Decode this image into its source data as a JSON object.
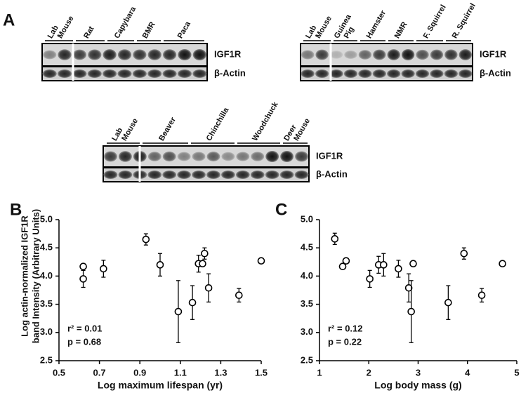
{
  "panel_a": {
    "label": "A",
    "blots": [
      {
        "groups": [
          [
            "Lab",
            "Mouse"
          ],
          [
            "Rat"
          ],
          [
            "Capybara"
          ],
          [
            "BMR"
          ],
          [
            "Paca"
          ]
        ],
        "rows": [
          "IGF1R",
          "β-Actin"
        ]
      },
      {
        "groups": [
          [
            "Lab",
            "Mouse"
          ],
          [
            "Guinea",
            "Pig"
          ],
          [
            "Hamster"
          ],
          [
            "NMR"
          ],
          [
            "F. Squirrel"
          ],
          [
            "R. Squirrel"
          ]
        ],
        "rows": [
          "IGF1R",
          "β-Actin"
        ]
      },
      {
        "groups": [
          [
            "Lab",
            "Mouse"
          ],
          [
            "Beaver"
          ],
          [
            "Chinchilla"
          ],
          [
            "Woodchuck"
          ],
          [
            "Deer",
            "Mouse"
          ]
        ],
        "rows": [
          "IGF1R",
          "β-Actin"
        ]
      }
    ]
  },
  "chart_data": [
    {
      "type": "scatter",
      "panel": "B",
      "xlabel": "Log maximum lifespan (yr)",
      "ylabel": [
        "Log actin-normalized IGF1R",
        "band Intensity (Arbitrary Units)"
      ],
      "x": [
        0.62,
        0.62,
        0.72,
        0.93,
        1.0,
        1.09,
        1.16,
        1.19,
        1.21,
        1.22,
        1.24,
        1.39,
        1.5
      ],
      "values": [
        4.17,
        3.95,
        4.13,
        4.65,
        4.2,
        3.37,
        3.53,
        4.22,
        4.22,
        4.4,
        3.79,
        3.66,
        4.27
      ],
      "errors": [
        null,
        0.15,
        0.15,
        0.1,
        0.2,
        0.55,
        0.3,
        0.15,
        null,
        0.1,
        0.25,
        0.12,
        null
      ],
      "xlim": [
        0.5,
        1.5
      ],
      "xticks": [
        0.5,
        0.7,
        0.9,
        1.1,
        1.3,
        1.5
      ],
      "ylim": [
        2.5,
        5
      ],
      "yticks": [
        2.5,
        {
          "value": 3,
          "label": "3.0"
        },
        3.5,
        {
          "value": 4,
          "label": "4.0"
        },
        4.5,
        {
          "value": 5,
          "label": "5.0"
        }
      ],
      "annotations": [
        "r² = 0.01",
        "p = 0.68"
      ]
    },
    {
      "type": "scatter",
      "panel": "C",
      "xlabel": "Log body mass (g)",
      "x": [
        1.31,
        1.47,
        1.54,
        2.02,
        2.2,
        2.3,
        2.6,
        2.81,
        2.86,
        2.9,
        3.61,
        3.93,
        4.29,
        4.71
      ],
      "values": [
        4.66,
        4.17,
        4.27,
        3.95,
        4.2,
        4.2,
        4.13,
        3.79,
        3.37,
        4.22,
        3.53,
        4.4,
        3.66,
        4.22
      ],
      "errors": [
        0.1,
        null,
        null,
        0.15,
        0.15,
        0.2,
        0.15,
        0.25,
        0.55,
        null,
        0.3,
        0.1,
        0.12,
        null
      ],
      "xlim": [
        1,
        5
      ],
      "xticks": [
        1,
        2,
        3,
        4,
        5
      ],
      "ylim": [
        2.5,
        5
      ],
      "yticks": [
        2.5,
        {
          "value": 3,
          "label": "3.0"
        },
        3.5,
        {
          "value": 4,
          "label": "4.0"
        },
        4.5,
        {
          "value": 5,
          "label": "5.0"
        }
      ],
      "annotations": [
        "r² = 0.12",
        "p = 0.22"
      ]
    }
  ]
}
